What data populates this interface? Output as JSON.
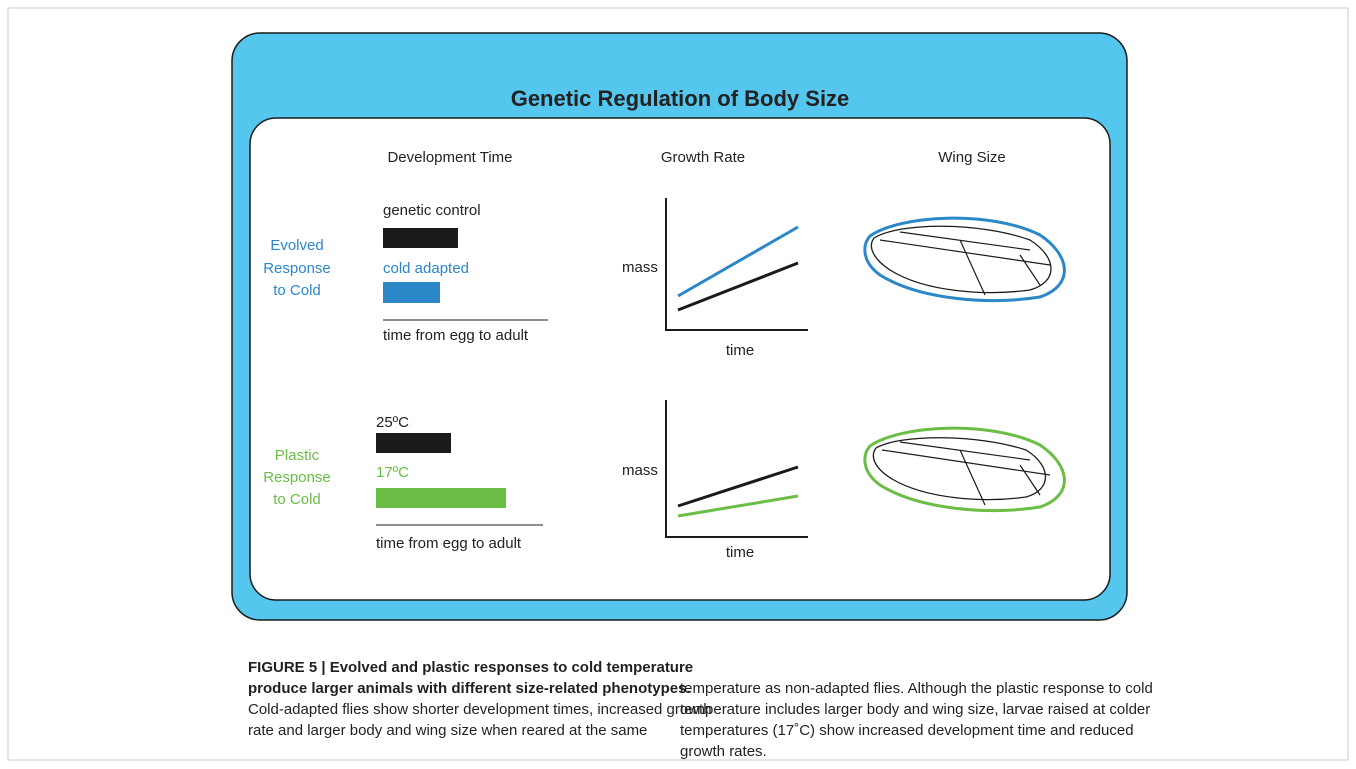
{
  "figure": {
    "title": "Genetic Regulation of Body Size",
    "columns": [
      "Development Time",
      "Growth Rate",
      "Wing Size"
    ],
    "rows": [
      {
        "label": [
          "Evolved",
          "Response",
          "to Cold"
        ],
        "bar_labels": [
          "genetic control",
          "cold adapted"
        ],
        "axis_label": "time from egg to adult",
        "y_label": "mass",
        "x_label": "time"
      },
      {
        "label": [
          "Plastic",
          "Response",
          "to Cold"
        ],
        "bar_labels": [
          "25ºC",
          "17ºC"
        ],
        "axis_label": "time from egg to adult",
        "y_label": "mass",
        "x_label": "time"
      }
    ]
  },
  "caption": {
    "lines": [
      "FIGURE 5 | Evolved and plastic responses to cold temperature",
      "produce larger animals with different size-related phenotypes.",
      "Cold-adapted flies show shorter development times, increased growth",
      "rate and larger body and wing size when reared at the same",
      "temperature as non-adapted flies. Although the plastic response to cold",
      "temperature includes larger body and wing size, larvae raised at colder",
      "temperatures (17˚C) show increased development time and reduced",
      "growth rates."
    ]
  }
}
